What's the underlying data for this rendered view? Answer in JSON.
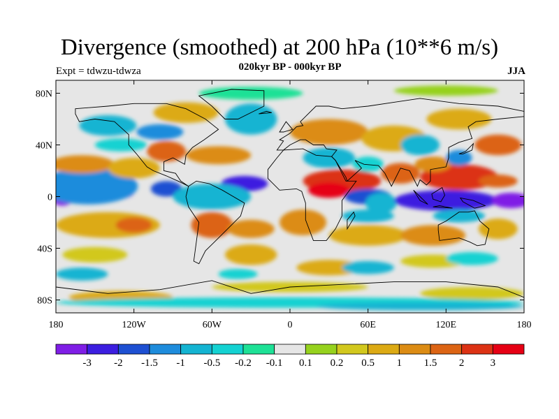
{
  "title": "Divergence (smoothed) at 200 hPa (10**6 m/s)",
  "experiment": "Expt = tdwzu-tdwza",
  "period": "020kyr BP - 000kyr BP",
  "season": "JJA",
  "map": {
    "lon_range": [
      -180,
      180
    ],
    "lat_range": [
      -90,
      90
    ],
    "lat_ticks": [
      {
        "value": 80,
        "label": "80N"
      },
      {
        "value": 40,
        "label": "40N"
      },
      {
        "value": 0,
        "label": "0"
      },
      {
        "value": -40,
        "label": "40S"
      },
      {
        "value": -80,
        "label": "80S"
      }
    ],
    "lon_ticks": [
      {
        "value": -180,
        "label": "180"
      },
      {
        "value": -120,
        "label": "120W"
      },
      {
        "value": -60,
        "label": "60W"
      },
      {
        "value": 0,
        "label": "0"
      },
      {
        "value": 60,
        "label": "60E"
      },
      {
        "value": 120,
        "label": "120E"
      },
      {
        "value": 180,
        "label": "180"
      }
    ]
  },
  "colorbar": {
    "colors": [
      "#7f1ee6",
      "#3c1ee0",
      "#1e50d2",
      "#1e8cdc",
      "#14b4d2",
      "#14d2d2",
      "#1ee196",
      "#e6e6e6",
      "#96d21e",
      "#d2c81e",
      "#dcaa14",
      "#dc8c14",
      "#dc6414",
      "#dc3214",
      "#e60014"
    ],
    "labels": [
      "-3",
      "-2",
      "-1.5",
      "-1",
      "-0.5",
      "-0.2",
      "-0.1",
      "0.1",
      "0.2",
      "0.5",
      "1",
      "1.5",
      "2",
      "3"
    ]
  },
  "field_blobs": [
    {
      "lon": -150,
      "lat": 3,
      "rx": 30,
      "ry": 7,
      "level": 0
    },
    {
      "lon": -175,
      "lat": -2,
      "rx": 8,
      "ry": 5,
      "level": 0
    },
    {
      "lon": -155,
      "lat": 8,
      "rx": 38,
      "ry": 14,
      "level": 3
    },
    {
      "lon": -95,
      "lat": 6,
      "rx": 12,
      "ry": 6,
      "level": 2
    },
    {
      "lon": -35,
      "lat": 10,
      "rx": 18,
      "ry": 6,
      "level": 1
    },
    {
      "lon": -60,
      "lat": 0,
      "rx": 30,
      "ry": 10,
      "level": 4
    },
    {
      "lon": -160,
      "lat": 25,
      "rx": 25,
      "ry": 7,
      "level": 11
    },
    {
      "lon": -120,
      "lat": 22,
      "rx": 20,
      "ry": 8,
      "level": 10
    },
    {
      "lon": -140,
      "lat": -22,
      "rx": 40,
      "ry": 10,
      "level": 10
    },
    {
      "lon": -120,
      "lat": -22,
      "rx": 14,
      "ry": 6,
      "level": 12
    },
    {
      "lon": -60,
      "lat": -22,
      "rx": 16,
      "ry": 10,
      "level": 12
    },
    {
      "lon": -30,
      "lat": -25,
      "rx": 18,
      "ry": 7,
      "level": 11
    },
    {
      "lon": -55,
      "lat": 32,
      "rx": 25,
      "ry": 7,
      "level": 11
    },
    {
      "lon": -95,
      "lat": 35,
      "rx": 15,
      "ry": 8,
      "level": 12
    },
    {
      "lon": -80,
      "lat": 65,
      "rx": 25,
      "ry": 8,
      "level": 10
    },
    {
      "lon": -140,
      "lat": 55,
      "rx": 22,
      "ry": 8,
      "level": 4
    },
    {
      "lon": -130,
      "lat": 40,
      "rx": 20,
      "ry": 5,
      "level": 5
    },
    {
      "lon": -30,
      "lat": 60,
      "rx": 20,
      "ry": 12,
      "level": 4
    },
    {
      "lon": -100,
      "lat": 50,
      "rx": 18,
      "ry": 6,
      "level": 3
    },
    {
      "lon": 30,
      "lat": 50,
      "rx": 30,
      "ry": 10,
      "level": 11
    },
    {
      "lon": 80,
      "lat": 45,
      "rx": 25,
      "ry": 10,
      "level": 10
    },
    {
      "lon": 130,
      "lat": 60,
      "rx": 25,
      "ry": 8,
      "level": 10
    },
    {
      "lon": 160,
      "lat": 40,
      "rx": 18,
      "ry": 8,
      "level": 12
    },
    {
      "lon": 40,
      "lat": 12,
      "rx": 30,
      "ry": 9,
      "level": 13
    },
    {
      "lon": 30,
      "lat": 5,
      "rx": 16,
      "ry": 6,
      "level": 14
    },
    {
      "lon": 85,
      "lat": 18,
      "rx": 15,
      "ry": 8,
      "level": 12
    },
    {
      "lon": 130,
      "lat": 15,
      "rx": 30,
      "ry": 10,
      "level": 13
    },
    {
      "lon": 110,
      "lat": 25,
      "rx": 14,
      "ry": 6,
      "level": 11
    },
    {
      "lon": 160,
      "lat": 12,
      "rx": 15,
      "ry": 5,
      "level": 12
    },
    {
      "lon": 60,
      "lat": 0,
      "rx": 18,
      "ry": 6,
      "level": 2
    },
    {
      "lon": 70,
      "lat": -5,
      "rx": 12,
      "ry": 8,
      "level": 4
    },
    {
      "lon": 120,
      "lat": -3,
      "rx": 40,
      "ry": 8,
      "level": 1
    },
    {
      "lon": 170,
      "lat": -3,
      "rx": 15,
      "ry": 6,
      "level": 0
    },
    {
      "lon": 30,
      "lat": 30,
      "rx": 20,
      "ry": 8,
      "level": 4
    },
    {
      "lon": 100,
      "lat": 40,
      "rx": 15,
      "ry": 8,
      "level": 4
    },
    {
      "lon": 130,
      "lat": 30,
      "rx": 10,
      "ry": 6,
      "level": 3
    },
    {
      "lon": 60,
      "lat": 25,
      "rx": 12,
      "ry": 6,
      "level": 5
    },
    {
      "lon": 10,
      "lat": -20,
      "rx": 18,
      "ry": 10,
      "level": 11
    },
    {
      "lon": 60,
      "lat": -30,
      "rx": 30,
      "ry": 8,
      "level": 10
    },
    {
      "lon": 110,
      "lat": -30,
      "rx": 25,
      "ry": 8,
      "level": 11
    },
    {
      "lon": 160,
      "lat": -25,
      "rx": 15,
      "ry": 8,
      "level": 10
    },
    {
      "lon": 60,
      "lat": -15,
      "rx": 20,
      "ry": 5,
      "level": 4
    },
    {
      "lon": 130,
      "lat": -15,
      "rx": 20,
      "ry": 5,
      "level": 4
    },
    {
      "lon": -150,
      "lat": -45,
      "rx": 25,
      "ry": 6,
      "level": 9
    },
    {
      "lon": -30,
      "lat": -45,
      "rx": 20,
      "ry": 8,
      "level": 10
    },
    {
      "lon": 30,
      "lat": -55,
      "rx": 25,
      "ry": 6,
      "level": 10
    },
    {
      "lon": 110,
      "lat": -50,
      "rx": 25,
      "ry": 5,
      "level": 9
    },
    {
      "lon": -160,
      "lat": -60,
      "rx": 20,
      "ry": 5,
      "level": 4
    },
    {
      "lon": 60,
      "lat": -55,
      "rx": 20,
      "ry": 5,
      "level": 4
    },
    {
      "lon": 140,
      "lat": -48,
      "rx": 20,
      "ry": 5,
      "level": 5
    },
    {
      "lon": -40,
      "lat": -60,
      "rx": 15,
      "ry": 4,
      "level": 5
    },
    {
      "lon": 0,
      "lat": -70,
      "rx": 60,
      "ry": 4,
      "level": 9
    },
    {
      "lon": 140,
      "lat": -75,
      "rx": 40,
      "ry": 5,
      "level": 9
    },
    {
      "lon": -130,
      "lat": -78,
      "rx": 40,
      "ry": 5,
      "level": 10
    },
    {
      "lon": 0,
      "lat": -82,
      "rx": 180,
      "ry": 4,
      "level": 5
    },
    {
      "lon": 100,
      "lat": -85,
      "rx": 80,
      "ry": 3,
      "level": 4
    },
    {
      "lon": -30,
      "lat": 80,
      "rx": 40,
      "ry": 5,
      "level": 6
    },
    {
      "lon": 120,
      "lat": 82,
      "rx": 40,
      "ry": 4,
      "level": 8
    }
  ],
  "land": [
    [
      [
        -165,
        68
      ],
      [
        -140,
        70
      ],
      [
        -120,
        72
      ],
      [
        -95,
        72
      ],
      [
        -80,
        68
      ],
      [
        -65,
        60
      ],
      [
        -55,
        52
      ],
      [
        -66,
        44
      ],
      [
        -75,
        38
      ],
      [
        -80,
        32
      ],
      [
        -81,
        25
      ],
      [
        -90,
        30
      ],
      [
        -97,
        27
      ],
      [
        -97,
        20
      ],
      [
        -88,
        18
      ],
      [
        -84,
        12
      ],
      [
        -78,
        8
      ],
      [
        -80,
        9
      ],
      [
        -86,
        12
      ],
      [
        -95,
        16
      ],
      [
        -105,
        20
      ],
      [
        -110,
        23
      ],
      [
        -118,
        33
      ],
      [
        -124,
        40
      ],
      [
        -124,
        48
      ],
      [
        -135,
        58
      ],
      [
        -150,
        60
      ],
      [
        -162,
        58
      ],
      [
        -165,
        64
      ]
    ],
    [
      [
        -78,
        8
      ],
      [
        -72,
        12
      ],
      [
        -62,
        10
      ],
      [
        -52,
        5
      ],
      [
        -35,
        -5
      ],
      [
        -38,
        -15
      ],
      [
        -48,
        -25
      ],
      [
        -58,
        -35
      ],
      [
        -65,
        -42
      ],
      [
        -70,
        -52
      ],
      [
        -74,
        -50
      ],
      [
        -72,
        -35
      ],
      [
        -70,
        -20
      ],
      [
        -78,
        -8
      ],
      [
        -80,
        0
      ]
    ],
    [
      [
        -50,
        60
      ],
      [
        -40,
        60
      ],
      [
        -20,
        70
      ],
      [
        -20,
        82
      ],
      [
        -45,
        83
      ],
      [
        -70,
        78
      ],
      [
        -60,
        70
      ]
    ],
    [
      [
        -10,
        36
      ],
      [
        -5,
        43
      ],
      [
        -8,
        44
      ],
      [
        0,
        49
      ],
      [
        5,
        54
      ],
      [
        10,
        55
      ],
      [
        8,
        58
      ],
      [
        12,
        62
      ],
      [
        20,
        70
      ],
      [
        30,
        70
      ],
      [
        40,
        68
      ],
      [
        60,
        70
      ],
      [
        80,
        73
      ],
      [
        100,
        76
      ],
      [
        130,
        72
      ],
      [
        160,
        70
      ],
      [
        180,
        66
      ],
      [
        180,
        62
      ],
      [
        160,
        60
      ],
      [
        143,
        58
      ],
      [
        137,
        54
      ],
      [
        140,
        45
      ],
      [
        130,
        42
      ],
      [
        122,
        38
      ],
      [
        122,
        30
      ],
      [
        120,
        23
      ],
      [
        108,
        21
      ],
      [
        108,
        12
      ],
      [
        105,
        9
      ],
      [
        100,
        13
      ],
      [
        98,
        8
      ],
      [
        92,
        20
      ],
      [
        85,
        22
      ],
      [
        78,
        8
      ],
      [
        73,
        18
      ],
      [
        68,
        24
      ],
      [
        57,
        25
      ],
      [
        50,
        28
      ],
      [
        55,
        22
      ],
      [
        44,
        12
      ],
      [
        43,
        15
      ],
      [
        35,
        28
      ],
      [
        32,
        31
      ],
      [
        36,
        36
      ],
      [
        28,
        37
      ],
      [
        26,
        40
      ],
      [
        18,
        40
      ],
      [
        12,
        44
      ],
      [
        8,
        44
      ],
      [
        0,
        40
      ],
      [
        -5,
        36
      ]
    ],
    [
      [
        -17,
        21
      ],
      [
        -10,
        30
      ],
      [
        -5,
        36
      ],
      [
        10,
        37
      ],
      [
        20,
        32
      ],
      [
        32,
        31
      ],
      [
        35,
        28
      ],
      [
        43,
        12
      ],
      [
        51,
        12
      ],
      [
        40,
        -3
      ],
      [
        40,
        -15
      ],
      [
        35,
        -25
      ],
      [
        28,
        -34
      ],
      [
        18,
        -34
      ],
      [
        12,
        -18
      ],
      [
        12,
        -5
      ],
      [
        9,
        4
      ],
      [
        5,
        6
      ],
      [
        -8,
        5
      ],
      [
        -17,
        14
      ]
    ],
    [
      [
        114,
        -22
      ],
      [
        120,
        -19
      ],
      [
        130,
        -12
      ],
      [
        137,
        -12
      ],
      [
        142,
        -11
      ],
      [
        146,
        -19
      ],
      [
        153,
        -25
      ],
      [
        150,
        -37
      ],
      [
        144,
        -38
      ],
      [
        138,
        -35
      ],
      [
        130,
        -32
      ],
      [
        115,
        -34
      ],
      [
        114,
        -26
      ]
    ],
    [
      [
        -180,
        -70
      ],
      [
        -140,
        -75
      ],
      [
        -100,
        -72
      ],
      [
        -60,
        -65
      ],
      [
        -30,
        -75
      ],
      [
        0,
        -70
      ],
      [
        40,
        -68
      ],
      [
        80,
        -66
      ],
      [
        120,
        -66
      ],
      [
        160,
        -70
      ],
      [
        180,
        -78
      ],
      [
        180,
        -90
      ],
      [
        -180,
        -90
      ]
    ],
    [
      [
        95,
        5
      ],
      [
        100,
        0
      ],
      [
        106,
        -6
      ],
      [
        100,
        -3
      ]
    ],
    [
      [
        110,
        -8
      ],
      [
        125,
        -9
      ],
      [
        115,
        -7
      ]
    ],
    [
      [
        109,
        2
      ],
      [
        117,
        7
      ],
      [
        119,
        1
      ],
      [
        116,
        -4
      ],
      [
        110,
        -2
      ]
    ],
    [
      [
        131,
        -1
      ],
      [
        141,
        -3
      ],
      [
        150,
        -7
      ],
      [
        142,
        -9
      ],
      [
        133,
        -4
      ]
    ],
    [
      [
        130,
        33
      ],
      [
        135,
        35
      ],
      [
        141,
        41
      ],
      [
        140,
        36
      ],
      [
        133,
        33
      ]
    ],
    [
      [
        -8,
        50
      ],
      [
        -3,
        58
      ],
      [
        2,
        52
      ],
      [
        -5,
        50
      ]
    ],
    [
      [
        -24,
        64
      ],
      [
        -14,
        65
      ],
      [
        -18,
        66
      ]
    ],
    [
      [
        44,
        -25
      ],
      [
        50,
        -15
      ],
      [
        49,
        -12
      ],
      [
        44,
        -18
      ]
    ]
  ]
}
